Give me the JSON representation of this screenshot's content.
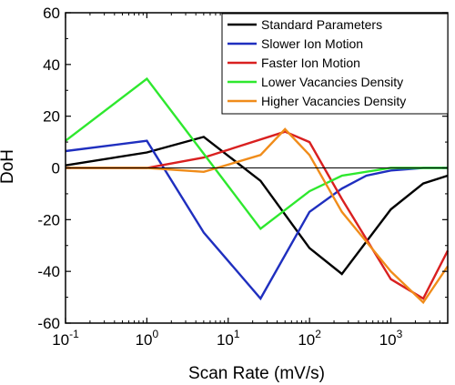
{
  "chart_data": {
    "type": "line",
    "xlabel": "Scan Rate (mV/s)",
    "ylabel": "DoH",
    "xscale": "log",
    "xlim": [
      0.1,
      5000
    ],
    "ylim": [
      -60,
      60
    ],
    "grid": false,
    "legend_position": "top-right",
    "reference_line_y": 0,
    "x_ticks": [
      {
        "value": 0.1,
        "base": "10",
        "exp": "-1"
      },
      {
        "value": 1,
        "base": "10",
        "exp": "0"
      },
      {
        "value": 10,
        "base": "10",
        "exp": "1"
      },
      {
        "value": 100,
        "base": "10",
        "exp": "2"
      },
      {
        "value": 1000,
        "base": "10",
        "exp": "3"
      }
    ],
    "y_ticks": [
      "60",
      "40",
      "20",
      "0",
      "-20",
      "-40",
      "-60"
    ],
    "series": [
      {
        "name": "Standard Parameters",
        "color": "#000000",
        "x": [
          0.1,
          1,
          5,
          25,
          100,
          250,
          1000,
          2500,
          5000
        ],
        "y": [
          1,
          6,
          12,
          -5,
          -31,
          -41,
          -16,
          -6,
          -3
        ]
      },
      {
        "name": "Slower Ion Motion",
        "color": "#1f2fbf",
        "x": [
          0.1,
          1,
          5,
          25,
          100,
          250,
          500,
          1000,
          2500,
          5000
        ],
        "y": [
          6.5,
          10.5,
          -25,
          -50.5,
          -17,
          -8,
          -3,
          -1,
          0,
          0
        ]
      },
      {
        "name": "Faster Ion Motion",
        "color": "#d92020",
        "x": [
          0.1,
          1,
          5,
          50,
          100,
          250,
          1000,
          2500,
          5000
        ],
        "y": [
          0,
          0,
          4,
          14,
          10,
          -12,
          -43,
          -50.5,
          -32
        ]
      },
      {
        "name": "Lower Vacancies Density",
        "color": "#2ee82e",
        "x": [
          0.1,
          1,
          25,
          100,
          250,
          1000,
          5000
        ],
        "y": [
          10.5,
          34.5,
          -23.5,
          -9,
          -3,
          0,
          0
        ]
      },
      {
        "name": "Higher Vacancies Density",
        "color": "#f08c1a",
        "x": [
          0.1,
          1,
          5,
          25,
          50,
          100,
          250,
          1000,
          2500,
          5000
        ],
        "y": [
          0,
          0,
          -1.5,
          5,
          15,
          5,
          -17,
          -40,
          -52,
          -38
        ]
      }
    ]
  }
}
